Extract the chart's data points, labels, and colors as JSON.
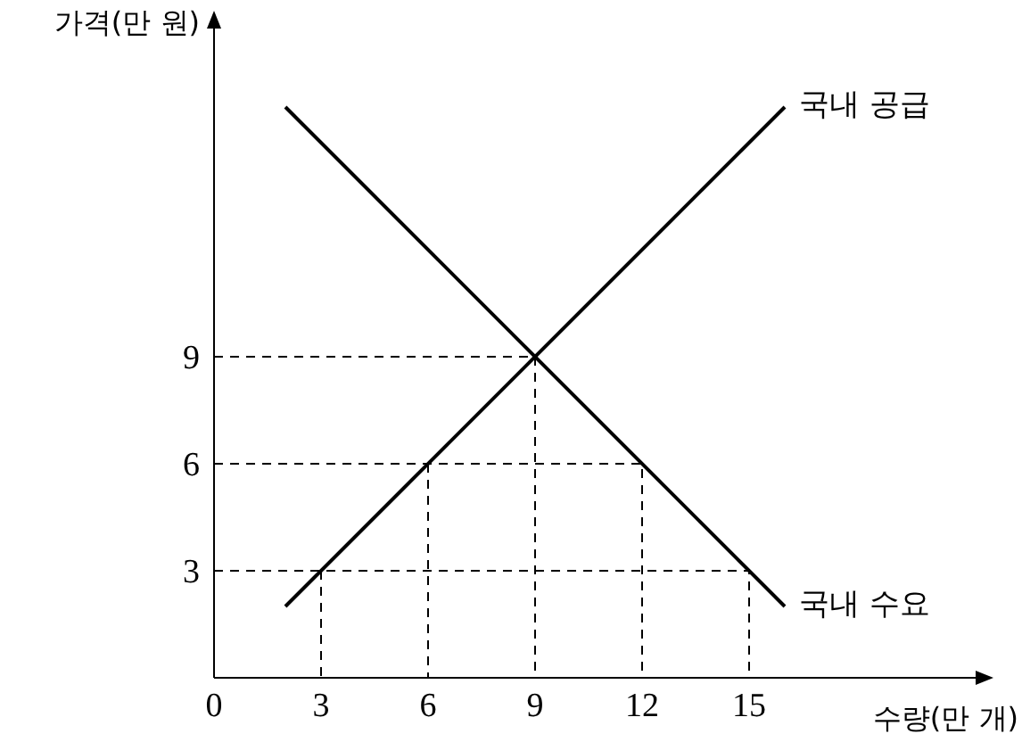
{
  "chart_data": {
    "type": "line",
    "xlabel": "수량(만 개)",
    "ylabel": "가격(만 원)",
    "xlim": [
      0,
      21.75
    ],
    "ylim": [
      0,
      18.6
    ],
    "xticks": [
      0,
      3,
      6,
      9,
      12,
      15
    ],
    "yticks": [
      3,
      6,
      9
    ],
    "grid": false,
    "legend": false,
    "marker": "none",
    "series": [
      {
        "name": "국내 공급",
        "color": "#000000",
        "x": [
          2,
          16
        ],
        "values": [
          2,
          16
        ],
        "line_style": "solid"
      },
      {
        "name": "국내 수요",
        "color": "#000000",
        "x": [
          2,
          16
        ],
        "values": [
          16,
          2
        ],
        "line_style": "solid"
      },
      {
        "color": "#000000",
        "x": [
          0,
          9,
          9
        ],
        "values": [
          9,
          9,
          0
        ],
        "line_style": "dashed"
      },
      {
        "color": "#000000",
        "x": [
          0,
          12,
          12
        ],
        "values": [
          6,
          6,
          0
        ],
        "line_style": "dashed"
      },
      {
        "color": "#000000",
        "x": [
          6,
          6
        ],
        "values": [
          6,
          0
        ],
        "line_style": "dashed"
      },
      {
        "color": "#000000",
        "x": [
          0,
          15,
          15
        ],
        "values": [
          3,
          3,
          0
        ],
        "line_style": "dashed"
      },
      {
        "color": "#000000",
        "x": [
          3,
          3
        ],
        "values": [
          3,
          0
        ],
        "line_style": "dashed"
      }
    ]
  }
}
